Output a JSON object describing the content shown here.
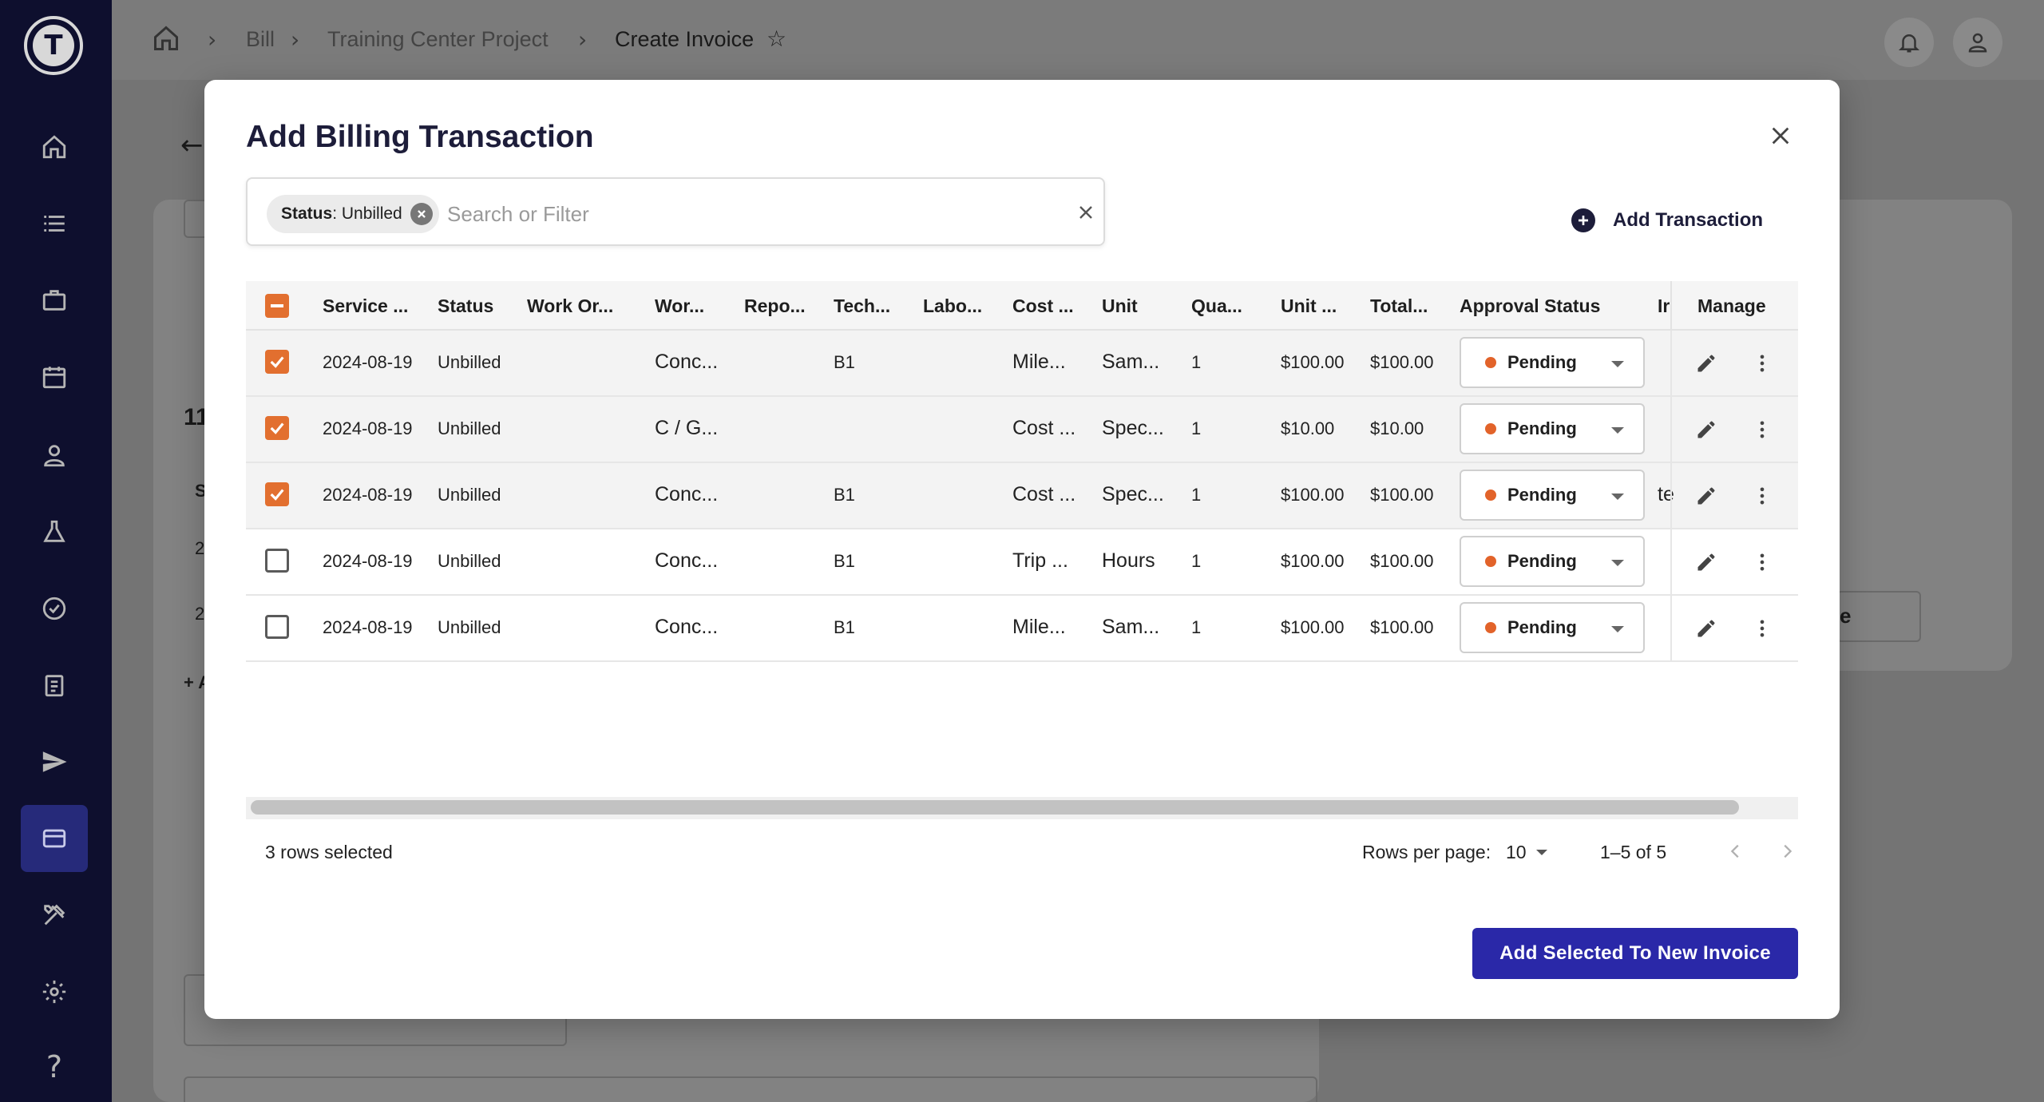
{
  "breadcrumb": {
    "items": [
      "Bill",
      "Training Center Project",
      "Create Invoice"
    ]
  },
  "modal": {
    "title": "Add Billing Transaction",
    "filter_chip": {
      "key": "Status",
      "value": ": Unbilled"
    },
    "search_placeholder": "Search or Filter",
    "add_transaction_label": "Add Transaction",
    "columns": [
      "Service ...",
      "Status",
      "Work Or...",
      "Wor...",
      "Repo...",
      "Tech...",
      "Labo...",
      "Cost ...",
      "Unit",
      "Qua...",
      "Unit ...",
      "Total...",
      "Approval Status",
      "Ir",
      "Manage"
    ],
    "rows": [
      {
        "selected": true,
        "service": "2024-08-19",
        "status": "Unbilled",
        "work_order": "",
        "wor": "Conc...",
        "repo": "",
        "tech": "B1",
        "labo": "",
        "cost": "Mile...",
        "unit": "Sam...",
        "qty": "1",
        "unit_price": "$100.00",
        "total": "$100.00",
        "approval": "Pending",
        "extra": ""
      },
      {
        "selected": true,
        "service": "2024-08-19",
        "status": "Unbilled",
        "work_order": "",
        "wor": "C / G...",
        "repo": "",
        "tech": "",
        "labo": "",
        "cost": "Cost ...",
        "unit": "Spec...",
        "qty": "1",
        "unit_price": "$10.00",
        "total": "$10.00",
        "approval": "Pending",
        "extra": ""
      },
      {
        "selected": true,
        "service": "2024-08-19",
        "status": "Unbilled",
        "work_order": "",
        "wor": "Conc...",
        "repo": "",
        "tech": "B1",
        "labo": "",
        "cost": "Cost ...",
        "unit": "Spec...",
        "qty": "1",
        "unit_price": "$100.00",
        "total": "$100.00",
        "approval": "Pending",
        "extra": "te"
      },
      {
        "selected": false,
        "service": "2024-08-19",
        "status": "Unbilled",
        "work_order": "",
        "wor": "Conc...",
        "repo": "",
        "tech": "B1",
        "labo": "",
        "cost": "Trip ...",
        "unit": "Hours",
        "qty": "1",
        "unit_price": "$100.00",
        "total": "$100.00",
        "approval": "Pending",
        "extra": ""
      },
      {
        "selected": false,
        "service": "2024-08-19",
        "status": "Unbilled",
        "work_order": "",
        "wor": "Conc...",
        "repo": "",
        "tech": "B1",
        "labo": "",
        "cost": "Mile...",
        "unit": "Sam...",
        "qty": "1",
        "unit_price": "$100.00",
        "total": "$100.00",
        "approval": "Pending",
        "extra": ""
      }
    ],
    "footer": {
      "selected_text": "3 rows selected",
      "rows_per_page_label": "Rows per page:",
      "rows_per_page_value": "10",
      "page_range": "1–5 of 5"
    },
    "primary_button": "Add Selected To New Invoice"
  },
  "background": {
    "fragments": [
      "11",
      "S",
      "2",
      "2",
      "+ A",
      "e"
    ]
  },
  "colors": {
    "sidebar": "#0e0f2e",
    "accent_orange": "#e26f2f",
    "primary_button": "#2a28a8",
    "pending_dot": "#e2632a"
  },
  "icons": [
    "home-icon",
    "list-icon",
    "briefcase-icon",
    "calendar-icon",
    "person-icon",
    "flask-icon",
    "check-badge-icon",
    "clipboard-icon",
    "send-icon",
    "credit-card-icon",
    "tools-icon",
    "gear-icon",
    "help-icon",
    "bell-icon",
    "user-icon",
    "star-icon",
    "back-arrow-icon",
    "close-icon",
    "plus-circle-icon",
    "edit-icon",
    "more-vert-icon",
    "chevron-left-icon",
    "chevron-right-icon"
  ]
}
